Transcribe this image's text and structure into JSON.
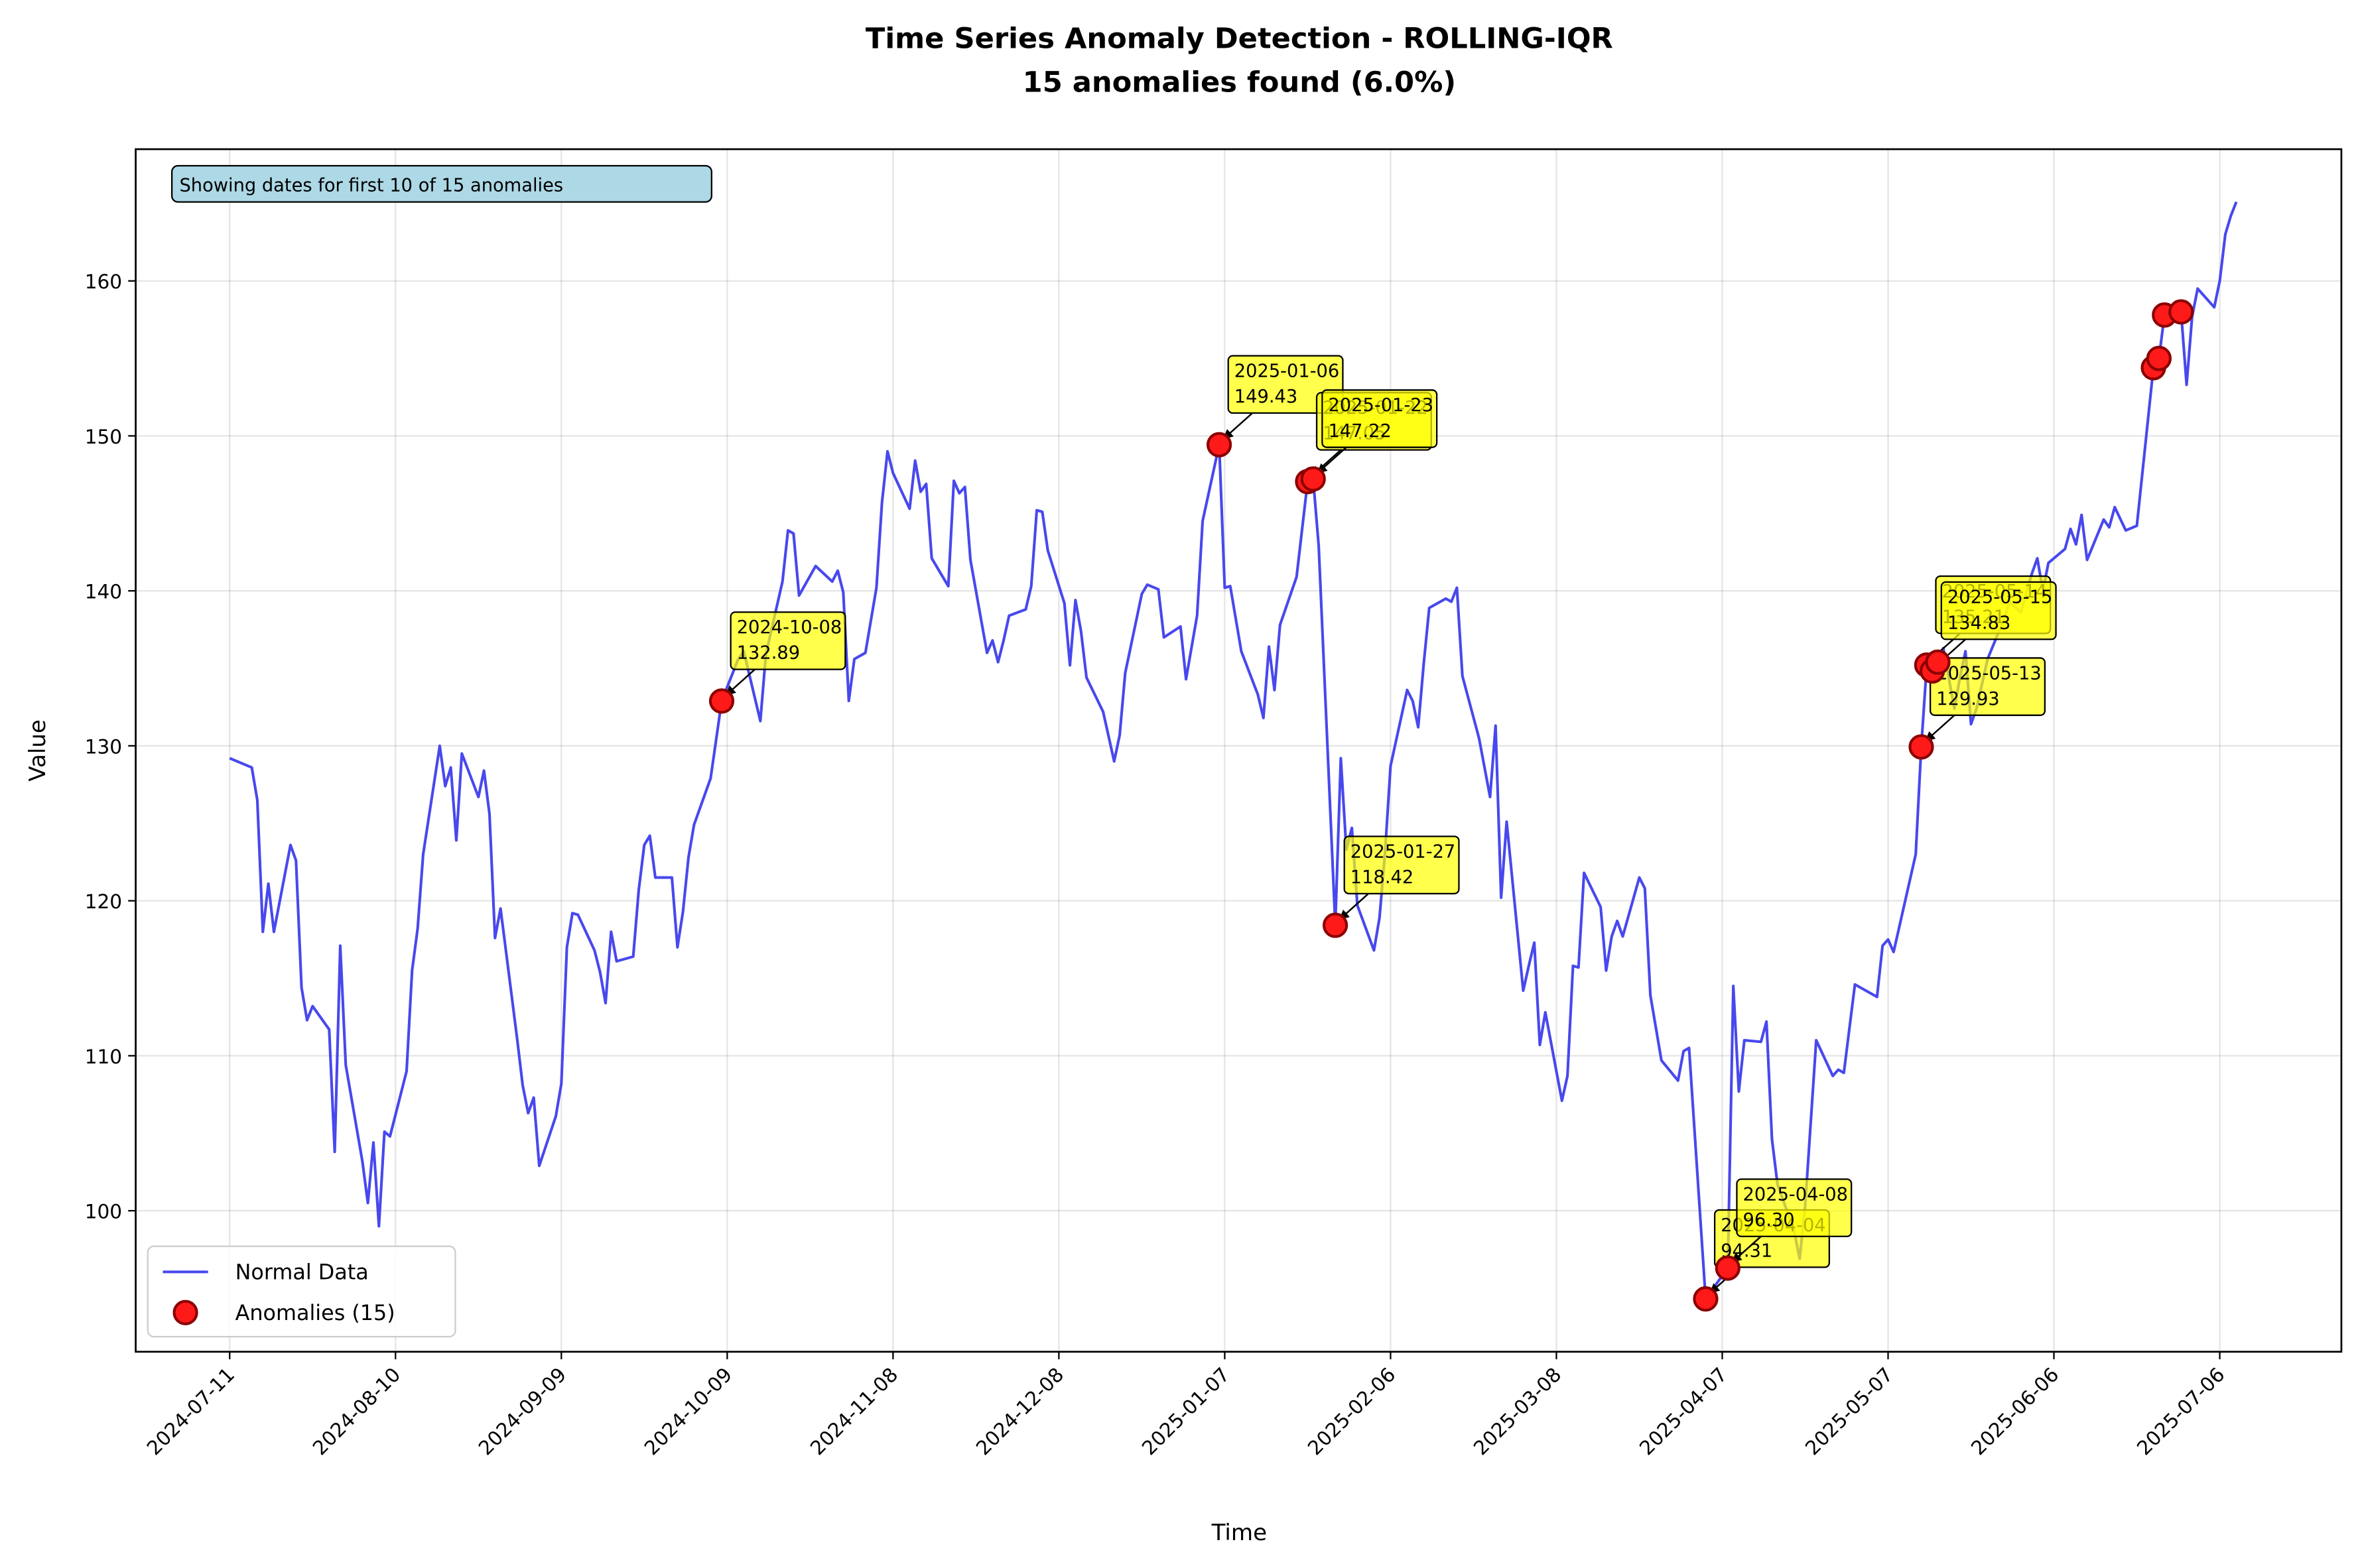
{
  "chart_data": {
    "type": "line",
    "title": "Time Series Anomaly Detection - ROLLING-IQR",
    "subtitle": "15 anomalies found (6.0%)",
    "info_text": "Showing dates for first 10 of 15 anomalies",
    "x_label": "Time",
    "y_label": "Value",
    "xlim": [
      "2024-06-24",
      "2025-07-28"
    ],
    "ylim": [
      90.9,
      168.5
    ],
    "xticks": [
      "2024-07-11",
      "2024-08-10",
      "2024-09-09",
      "2024-10-09",
      "2024-11-08",
      "2024-12-08",
      "2025-01-07",
      "2025-02-06",
      "2025-03-08",
      "2025-04-07",
      "2025-05-07",
      "2025-06-06",
      "2025-07-06"
    ],
    "yticks": [
      100,
      110,
      120,
      130,
      140,
      150,
      160
    ],
    "grid": true,
    "legend": "lower left",
    "series": [
      {
        "name": "Normal Data",
        "color": "#4848ee",
        "x": [
          "2024-07-11",
          "2024-07-15",
          "2024-07-16",
          "2024-07-17",
          "2024-07-18",
          "2024-07-19",
          "2024-07-22",
          "2024-07-23",
          "2024-07-24",
          "2024-07-25",
          "2024-07-26",
          "2024-07-29",
          "2024-07-30",
          "2024-07-31",
          "2024-08-01",
          "2024-08-04",
          "2024-08-05",
          "2024-08-06",
          "2024-08-07",
          "2024-08-08",
          "2024-08-09",
          "2024-08-12",
          "2024-08-13",
          "2024-08-14",
          "2024-08-15",
          "2024-08-18",
          "2024-08-19",
          "2024-08-20",
          "2024-08-21",
          "2024-08-22",
          "2024-08-25",
          "2024-08-26",
          "2024-08-27",
          "2024-08-28",
          "2024-08-29",
          "2024-09-01",
          "2024-09-02",
          "2024-09-03",
          "2024-09-04",
          "2024-09-05",
          "2024-09-08",
          "2024-09-09",
          "2024-09-10",
          "2024-09-11",
          "2024-09-12",
          "2024-09-15",
          "2024-09-16",
          "2024-09-17",
          "2024-09-18",
          "2024-09-19",
          "2024-09-22",
          "2024-09-23",
          "2024-09-24",
          "2024-09-25",
          "2024-09-26",
          "2024-09-29",
          "2024-09-30",
          "2024-10-01",
          "2024-10-02",
          "2024-10-03",
          "2024-10-06",
          "2024-10-08",
          "2024-10-11",
          "2024-10-12",
          "2024-10-15",
          "2024-10-16",
          "2024-10-19",
          "2024-10-20",
          "2024-10-21",
          "2024-10-22",
          "2024-10-25",
          "2024-10-28",
          "2024-10-29",
          "2024-10-30",
          "2024-10-31",
          "2024-11-01",
          "2024-11-03",
          "2024-11-05",
          "2024-11-06",
          "2024-11-07",
          "2024-11-08",
          "2024-11-11",
          "2024-11-12",
          "2024-11-13",
          "2024-11-14",
          "2024-11-15",
          "2024-11-18",
          "2024-11-19",
          "2024-11-20",
          "2024-11-21",
          "2024-11-22",
          "2024-11-25",
          "2024-11-26",
          "2024-11-27",
          "2024-11-28",
          "2024-11-29",
          "2024-12-02",
          "2024-12-03",
          "2024-12-04",
          "2024-12-05",
          "2024-12-06",
          "2024-12-09",
          "2024-12-10",
          "2024-12-11",
          "2024-12-12",
          "2024-12-13",
          "2024-12-16",
          "2024-12-18",
          "2024-12-19",
          "2024-12-20",
          "2024-12-23",
          "2024-12-24",
          "2024-12-26",
          "2024-12-27",
          "2024-12-30",
          "2024-12-31",
          "2025-01-02",
          "2025-01-03",
          "2025-01-06",
          "2025-01-07",
          "2025-01-08",
          "2025-01-10",
          "2025-01-13",
          "2025-01-14",
          "2025-01-15",
          "2025-01-16",
          "2025-01-17",
          "2025-01-20",
          "2025-01-22",
          "2025-01-23",
          "2025-01-24",
          "2025-01-27",
          "2025-01-28",
          "2025-01-29",
          "2025-01-30",
          "2025-01-31",
          "2025-02-03",
          "2025-02-04",
          "2025-02-05",
          "2025-02-06",
          "2025-02-09",
          "2025-02-10",
          "2025-02-11",
          "2025-02-12",
          "2025-02-13",
          "2025-02-16",
          "2025-02-17",
          "2025-02-18",
          "2025-02-19",
          "2025-02-22",
          "2025-02-24",
          "2025-02-25",
          "2025-02-26",
          "2025-02-27",
          "2025-03-02",
          "2025-03-03",
          "2025-03-04",
          "2025-03-05",
          "2025-03-06",
          "2025-03-09",
          "2025-03-10",
          "2025-03-11",
          "2025-03-12",
          "2025-03-13",
          "2025-03-16",
          "2025-03-17",
          "2025-03-18",
          "2025-03-19",
          "2025-03-20",
          "2025-03-23",
          "2025-03-24",
          "2025-03-25",
          "2025-03-27",
          "2025-03-30",
          "2025-03-31",
          "2025-04-01",
          "2025-04-04",
          "2025-04-08",
          "2025-04-09",
          "2025-04-10",
          "2025-04-11",
          "2025-04-14",
          "2025-04-15",
          "2025-04-16",
          "2025-04-17",
          "2025-04-20",
          "2025-04-21",
          "2025-04-22",
          "2025-04-24",
          "2025-04-27",
          "2025-04-28",
          "2025-04-29",
          "2025-05-01",
          "2025-05-05",
          "2025-05-06",
          "2025-05-07",
          "2025-05-08",
          "2025-05-12",
          "2025-05-13",
          "2025-05-14",
          "2025-05-15",
          "2025-05-16",
          "2025-05-17",
          "2025-05-19",
          "2025-05-20",
          "2025-05-21",
          "2025-05-22",
          "2025-05-23",
          "2025-05-25",
          "2025-05-28",
          "2025-05-29",
          "2025-05-31",
          "2025-06-02",
          "2025-06-03",
          "2025-06-04",
          "2025-06-05",
          "2025-06-08",
          "2025-06-09",
          "2025-06-10",
          "2025-06-11",
          "2025-06-12",
          "2025-06-15",
          "2025-06-16",
          "2025-06-17",
          "2025-06-19",
          "2025-06-21",
          "2025-06-22",
          "2025-06-24",
          "2025-06-25",
          "2025-06-26",
          "2025-06-27",
          "2025-06-29",
          "2025-06-30",
          "2025-07-01",
          "2025-07-02",
          "2025-07-05",
          "2025-07-06",
          "2025-07-07",
          "2025-07-08",
          "2025-07-09"
        ],
        "values": [
          129.2,
          128.6,
          126.5,
          118.0,
          121.1,
          118.0,
          123.6,
          122.6,
          114.4,
          112.3,
          113.2,
          111.7,
          103.8,
          117.1,
          109.4,
          103.2,
          100.5,
          104.4,
          99.0,
          105.1,
          104.8,
          109.0,
          115.5,
          118.2,
          123.0,
          130.0,
          127.4,
          128.6,
          123.9,
          129.5,
          126.7,
          128.4,
          125.6,
          117.6,
          119.5,
          111.1,
          108.1,
          106.3,
          107.3,
          102.9,
          106.1,
          108.2,
          117.0,
          119.2,
          119.1,
          116.8,
          115.4,
          113.4,
          118.0,
          116.1,
          116.4,
          120.7,
          123.6,
          124.2,
          121.5,
          121.5,
          117.0,
          119.3,
          122.8,
          124.9,
          127.9,
          132.89,
          135.6,
          136.1,
          131.6,
          135.9,
          140.6,
          143.9,
          143.7,
          139.7,
          141.6,
          140.6,
          141.3,
          139.9,
          132.9,
          135.6,
          136.0,
          140.2,
          145.7,
          149.0,
          147.6,
          145.3,
          148.4,
          146.4,
          146.9,
          142.1,
          140.3,
          147.1,
          146.3,
          146.7,
          142.0,
          136.0,
          136.8,
          135.4,
          136.8,
          138.4,
          138.8,
          140.3,
          145.2,
          145.1,
          142.6,
          139.2,
          135.2,
          139.4,
          137.4,
          134.4,
          132.2,
          129.0,
          130.7,
          134.7,
          139.8,
          140.4,
          140.1,
          137.0,
          137.7,
          134.3,
          138.4,
          144.5,
          149.43,
          140.2,
          140.3,
          136.1,
          133.3,
          131.8,
          136.4,
          133.6,
          137.8,
          140.9,
          147.05,
          147.22,
          142.9,
          118.42,
          129.2,
          123.3,
          124.7,
          119.7,
          116.8,
          118.9,
          123.1,
          128.7,
          133.6,
          132.9,
          131.2,
          135.3,
          138.9,
          139.5,
          139.3,
          140.2,
          134.5,
          130.5,
          126.7,
          131.3,
          120.2,
          125.1,
          114.2,
          115.8,
          117.3,
          110.7,
          112.8,
          107.1,
          108.7,
          115.8,
          115.7,
          121.8,
          119.6,
          115.5,
          117.7,
          118.7,
          117.7,
          121.5,
          120.8,
          113.9,
          109.7,
          108.4,
          110.3,
          110.5,
          94.31,
          96.3,
          114.5,
          107.7,
          111.0,
          110.9,
          112.2,
          104.6,
          101.7,
          98.7,
          96.9,
          100.3,
          111.0,
          108.7,
          109.1,
          108.9,
          114.6,
          113.8,
          117.1,
          117.5,
          116.7,
          123.0,
          129.93,
          135.21,
          134.83,
          135.4,
          136.3,
          132.4,
          134.4,
          136.1,
          131.4,
          132.4,
          135.6,
          138.2,
          139.3,
          138.6,
          141.1,
          142.1,
          140.0,
          141.8,
          142.7,
          144.0,
          143.0,
          144.9,
          142.0,
          144.6,
          144.1,
          145.4,
          143.9,
          144.2,
          147.6,
          154.4,
          155.0,
          157.8,
          157.7,
          158.0,
          153.3,
          157.7,
          159.5,
          158.3,
          160.0,
          163.0,
          164.2,
          165.1
        ]
      },
      {
        "name": "Anomalies (15)",
        "type": "scatter",
        "color": "#ff1a1a",
        "edge_color": "#8b0000",
        "x": [
          "2024-10-08",
          "2025-01-06",
          "2025-01-22",
          "2025-01-23",
          "2025-01-27",
          "2025-04-04",
          "2025-04-08",
          "2025-05-13",
          "2025-05-14",
          "2025-05-15",
          "2025-05-16",
          "2025-06-24",
          "2025-06-25",
          "2025-06-26",
          "2025-06-29"
        ],
        "values": [
          132.89,
          149.43,
          147.05,
          147.22,
          118.42,
          94.31,
          96.3,
          129.93,
          135.21,
          134.83,
          135.4,
          154.4,
          155.0,
          157.8,
          158.0
        ],
        "value_labels": [
          "132.89",
          "149.43",
          "147.05",
          "147.22",
          "118.42",
          "94.31",
          "96.30",
          "129.93",
          "135.21",
          "134.83",
          null,
          null,
          null,
          null,
          null
        ]
      }
    ]
  }
}
